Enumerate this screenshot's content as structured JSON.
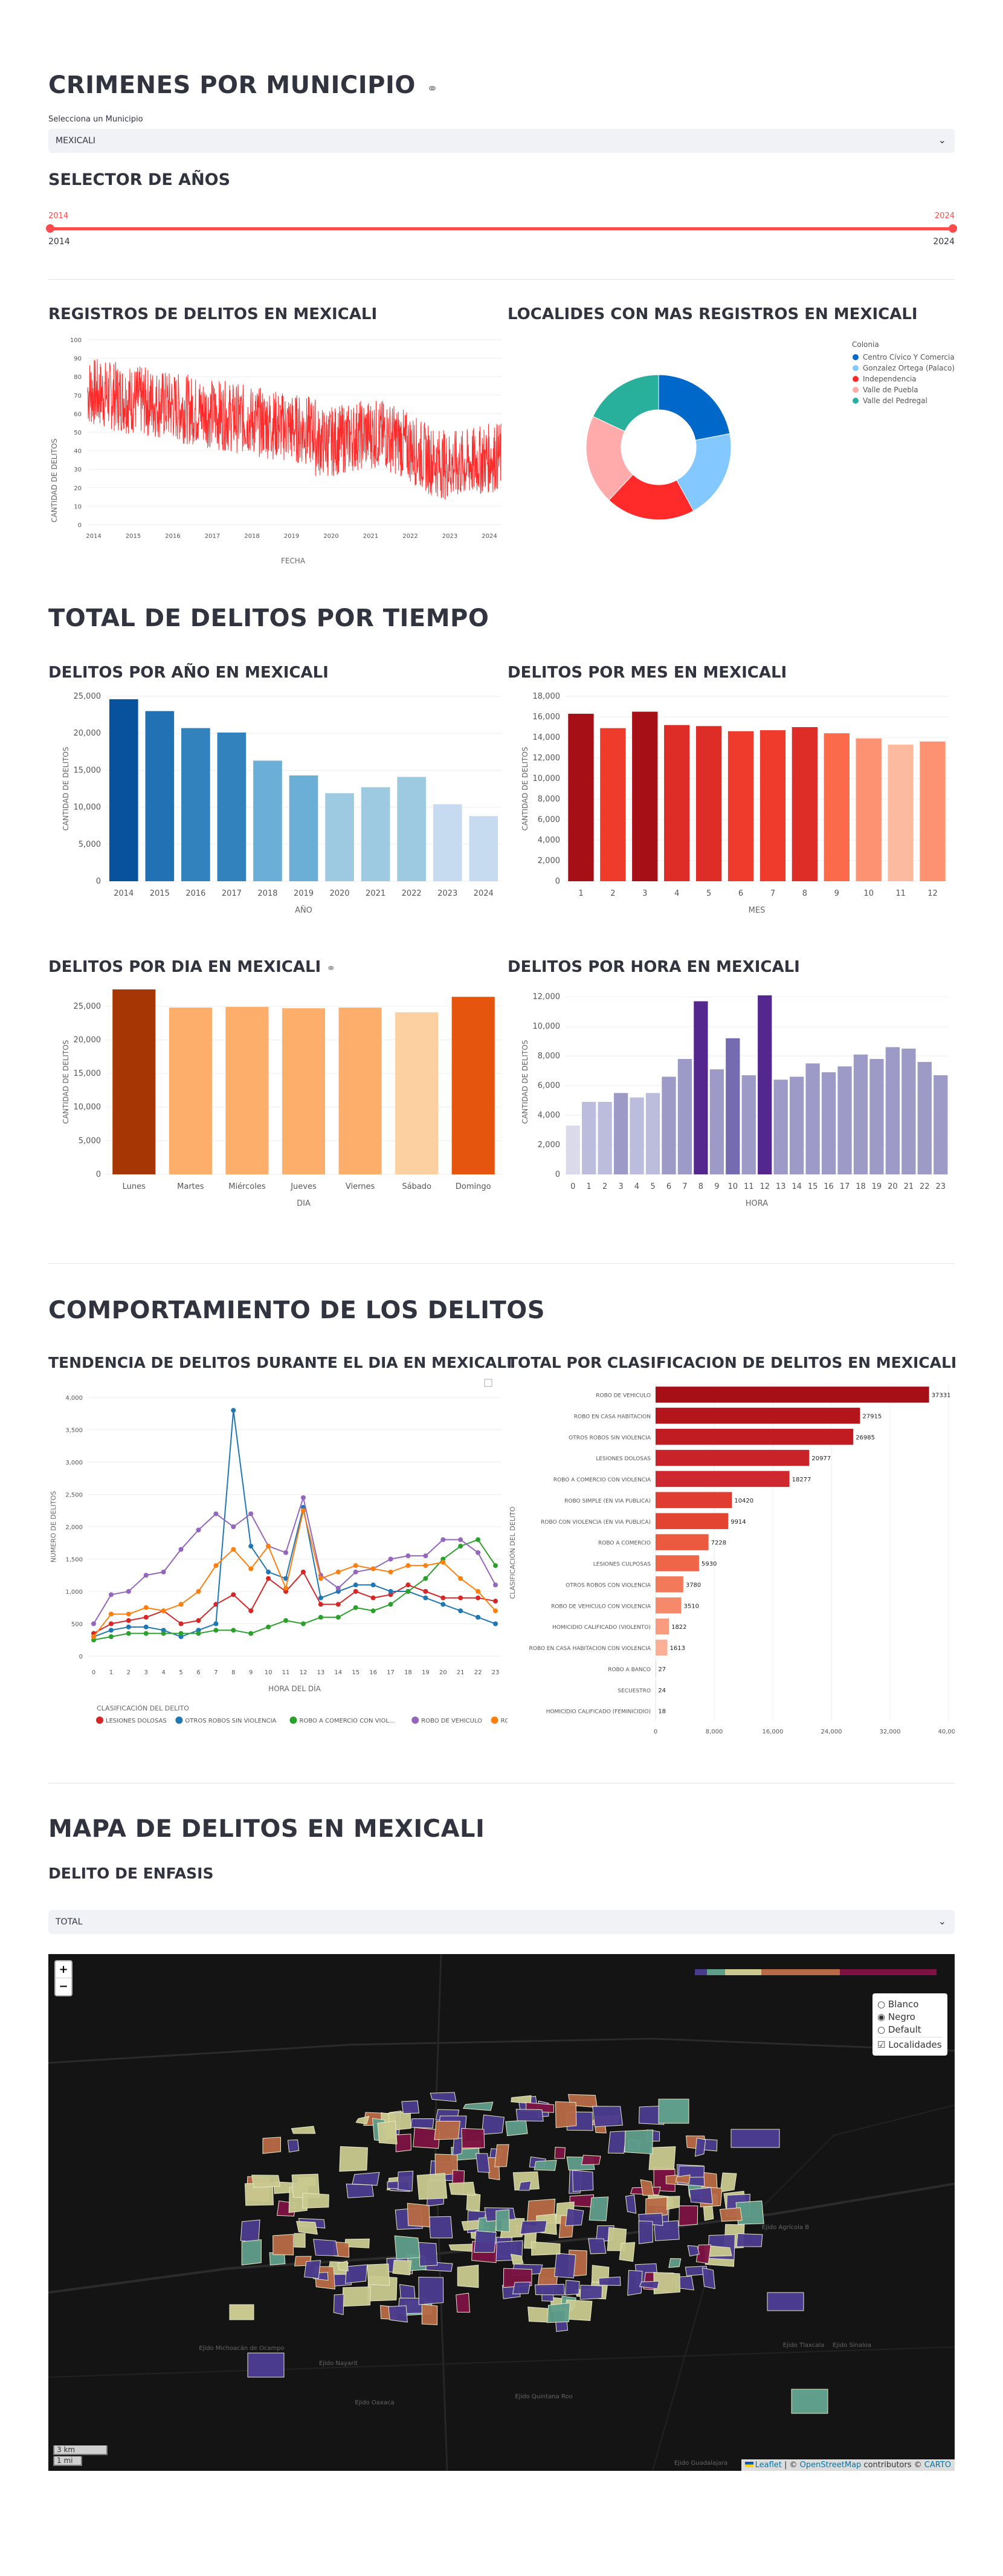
{
  "header": {
    "title": "CRIMENES POR MUNICIPIO",
    "link_icon": "⚭"
  },
  "municipio": {
    "label": "Selecciona un Municipio",
    "value": "MEXICALI"
  },
  "years": {
    "title": "SELECTOR DE AÑOS",
    "min_value": "2014",
    "max_value": "2024",
    "min": "2014",
    "max": "2024"
  },
  "section1": {
    "registros_title": "REGISTROS DE DELITOS EN MEXICALI",
    "localidades_title": "LOCALIDES CON MAS REGISTROS EN MEXICALI"
  },
  "line_chart": {
    "ylabel": "CANTIDAD DE DELITOS",
    "xlabel": "FECHA",
    "yticks": [
      "0",
      "10",
      "20",
      "30",
      "40",
      "50",
      "60",
      "70",
      "80",
      "90",
      "100"
    ],
    "xticks": [
      "2014",
      "2015",
      "2016",
      "2017",
      "2018",
      "2019",
      "2020",
      "2021",
      "2022",
      "2023",
      "2024"
    ]
  },
  "donut": {
    "legend_title": "Colonia",
    "items": [
      {
        "name": "Centro Cívico Y Comercial",
        "color": "#0068c9",
        "value": 22
      },
      {
        "name": "Gonzalez Ortega (Palaco)",
        "color": "#83c9ff",
        "value": 20
      },
      {
        "name": "Independencia",
        "color": "#ff2b2b",
        "value": 20
      },
      {
        "name": "Valle de Puebla",
        "color": "#ffabab",
        "value": 20
      },
      {
        "name": "Valle del Pedregal",
        "color": "#29b09d",
        "value": 18
      }
    ]
  },
  "section2": {
    "title": "TOTAL DE DELITOS POR TIEMPO"
  },
  "chart_data": [
    {
      "type": "bar",
      "title": "DELITOS POR AÑO EN MEXICALI",
      "xlabel": "AÑO",
      "ylabel": "CANTIDAD DE DELITOS",
      "categories": [
        "2014",
        "2015",
        "2016",
        "2017",
        "2018",
        "2019",
        "2020",
        "2021",
        "2022",
        "2023",
        "2024"
      ],
      "values": [
        24600,
        23000,
        20700,
        20100,
        16300,
        14300,
        11900,
        12700,
        14100,
        10400,
        8800
      ],
      "ylim": [
        0,
        25000
      ],
      "yticks": [
        "0",
        "5,000",
        "10,000",
        "15,000",
        "20,000",
        "25,000"
      ]
    },
    {
      "type": "bar",
      "title": "DELITOS POR MES EN MEXICALI",
      "xlabel": "MES",
      "ylabel": "CANTIDAD DE DELITOS",
      "categories": [
        "1",
        "2",
        "3",
        "4",
        "5",
        "6",
        "7",
        "8",
        "9",
        "10",
        "11",
        "12"
      ],
      "values": [
        16300,
        14900,
        16500,
        15200,
        15100,
        14600,
        14700,
        15000,
        14400,
        13900,
        13300,
        13600
      ],
      "ylim": [
        0,
        18000
      ],
      "yticks": [
        "0",
        "2,000",
        "4,000",
        "6,000",
        "8,000",
        "10,000",
        "12,000",
        "14,000",
        "16,000",
        "18,000"
      ]
    },
    {
      "type": "bar",
      "title": "DELITOS POR DIA EN MEXICALI",
      "xlabel": "DIA",
      "ylabel": "CANTIDAD DE DELITOS",
      "categories": [
        "Lunes",
        "Martes",
        "Miércoles",
        "Jueves",
        "Viernes",
        "Sábado",
        "Domingo"
      ],
      "values": [
        27500,
        24800,
        24900,
        24700,
        24800,
        24100,
        26400
      ],
      "ylim": [
        0,
        27500
      ],
      "yticks": [
        "0",
        "5,000",
        "10,000",
        "15,000",
        "20,000",
        "25,000"
      ]
    },
    {
      "type": "bar",
      "title": "DELITOS POR HORA EN MEXICALI",
      "xlabel": "HORA",
      "ylabel": "CANTIDAD DE DELITOS",
      "categories": [
        "0",
        "1",
        "2",
        "3",
        "4",
        "5",
        "6",
        "7",
        "8",
        "9",
        "10",
        "11",
        "12",
        "13",
        "14",
        "15",
        "16",
        "17",
        "18",
        "19",
        "20",
        "21",
        "22",
        "23"
      ],
      "values": [
        3300,
        4900,
        4900,
        5500,
        5200,
        5500,
        6600,
        7800,
        11700,
        7100,
        9200,
        6700,
        12100,
        6400,
        6600,
        7500,
        6900,
        7300,
        8100,
        7800,
        8600,
        8500,
        7600,
        6700
      ],
      "ylim": [
        0,
        12500
      ],
      "yticks": [
        "0",
        "2,000",
        "4,000",
        "6,000",
        "8,000",
        "10,000",
        "12,000"
      ]
    },
    {
      "type": "line",
      "title": "TENDENCIA DE DELITOS DURANTE EL DIA EN MEXICALI",
      "xlabel": "HORA DEL DÍA",
      "ylabel": "NUMERO DE DELITOS",
      "x": [
        0,
        1,
        2,
        3,
        4,
        5,
        6,
        7,
        8,
        9,
        10,
        11,
        12,
        13,
        14,
        15,
        16,
        17,
        18,
        19,
        20,
        21,
        22,
        23
      ],
      "ylim": [
        0,
        4000
      ],
      "yticks": [
        "0",
        "500",
        "1,000",
        "1,500",
        "2,000",
        "2,500",
        "3,000",
        "3,500",
        "4,000"
      ],
      "legend_title": "CLASIFICACIÓN DEL DELITO",
      "series": [
        {
          "name": "LESIONES DOLOSAS",
          "color": "#d62728",
          "values": [
            350,
            500,
            550,
            600,
            700,
            500,
            550,
            800,
            950,
            700,
            1200,
            1000,
            1300,
            800,
            800,
            1000,
            900,
            950,
            1100,
            1000,
            900,
            900,
            900,
            850
          ]
        },
        {
          "name": "OTROS ROBOS SIN VIOLENCIA",
          "color": "#1f77b4",
          "values": [
            300,
            400,
            450,
            450,
            400,
            300,
            400,
            500,
            3800,
            1700,
            1300,
            1200,
            2300,
            900,
            1000,
            1100,
            1100,
            1000,
            1000,
            900,
            800,
            700,
            600,
            500
          ]
        },
        {
          "name": "ROBO A COMERCIO CON VIOL...",
          "color": "#2ca02c",
          "values": [
            250,
            300,
            350,
            350,
            350,
            350,
            350,
            400,
            400,
            350,
            450,
            550,
            500,
            600,
            600,
            750,
            700,
            800,
            1000,
            1200,
            1500,
            1700,
            1800,
            1400
          ]
        },
        {
          "name": "ROBO DE VEHICULO",
          "color": "#9467bd",
          "values": [
            500,
            950,
            1000,
            1250,
            1300,
            1650,
            1950,
            2200,
            2000,
            2200,
            1700,
            1600,
            2450,
            1250,
            1050,
            1300,
            1350,
            1500,
            1550,
            1550,
            1800,
            1800,
            1600,
            1100
          ]
        },
        {
          "name": "ROB",
          "color": "#ff7f0e",
          "values": [
            300,
            650,
            650,
            750,
            700,
            800,
            1000,
            1400,
            1650,
            1350,
            1700,
            1050,
            2250,
            1200,
            1300,
            1400,
            1350,
            1300,
            1400,
            1400,
            1450,
            1200,
            1000,
            700
          ]
        }
      ]
    },
    {
      "type": "bar",
      "title": "TOTAL POR CLASIFICACION DE DELITOS EN MEXICALI",
      "xlabel": "CANTIDAD DE DELITOS",
      "ylabel": "CLASIFICACIÓN DEL DELITO",
      "categories": [
        "ROBO DE VEHICULO",
        "ROBO EN CASA HABITACION",
        "OTROS ROBOS SIN VIOLENCIA",
        "LESIONES DOLOSAS",
        "ROBO A COMERCIO CON VIOLENCIA",
        "ROBO SIMPLE (EN VIA PUBLICA)",
        "ROBO CON VIOLENCIA (EN VIA PUBLICA)",
        "ROBO A COMERCIO",
        "LESIONES CULPOSAS",
        "OTROS ROBOS CON VIOLENCIA",
        "ROBO DE VEHICULO CON VIOLENCIA",
        "HOMICIDIO CALIFICADO (VIOLENTO)",
        "ROBO EN CASA HABITACION CON VIOLENCIA",
        "ROBO A BANCO",
        "SECUESTRO",
        "HOMICIDIO CALIFICADO (FEMINICIDIO)"
      ],
      "values": [
        37331,
        27915,
        26985,
        20977,
        18277,
        10420,
        9914,
        7228,
        5930,
        3780,
        3510,
        1822,
        1613,
        27,
        24,
        18
      ],
      "xlim": [
        0,
        40000
      ],
      "xticks": [
        "0",
        "8,000",
        "16,000",
        "24,000",
        "32,000",
        "40,000"
      ]
    }
  ],
  "section3": {
    "title": "COMPORTAMIENTO DE LOS DELITOS"
  },
  "section4": {
    "title": "MAPA DE DELITOS EN MEXICALI",
    "enfasis_title": "DELITO DE ENFASIS",
    "enfasis_value": "TOTAL"
  },
  "map": {
    "zoom_in": "+",
    "zoom_out": "−",
    "layers": [
      {
        "label": "Blanco",
        "checked": false
      },
      {
        "label": "Negro",
        "checked": true
      },
      {
        "label": "Default",
        "checked": false
      }
    ],
    "overlay": "Localidades",
    "scale_km": "3 km",
    "scale_mi": "1 mi",
    "attribution": {
      "leaflet": "Leaflet",
      "sep": " | © ",
      "osm": "OpenStreetMap",
      "contrib": " contributors © ",
      "carto": "CARTO"
    },
    "places": [
      "Ejido Agrícola B",
      "Ejido Tlaxcala",
      "Ejido Sinaloa",
      "Ejido Michoacán de Ocampo",
      "Ejido Nayarit",
      "Ejido Oaxaca",
      "Ejido Quintana Roo",
      "Ejido Guadalajara"
    ]
  }
}
